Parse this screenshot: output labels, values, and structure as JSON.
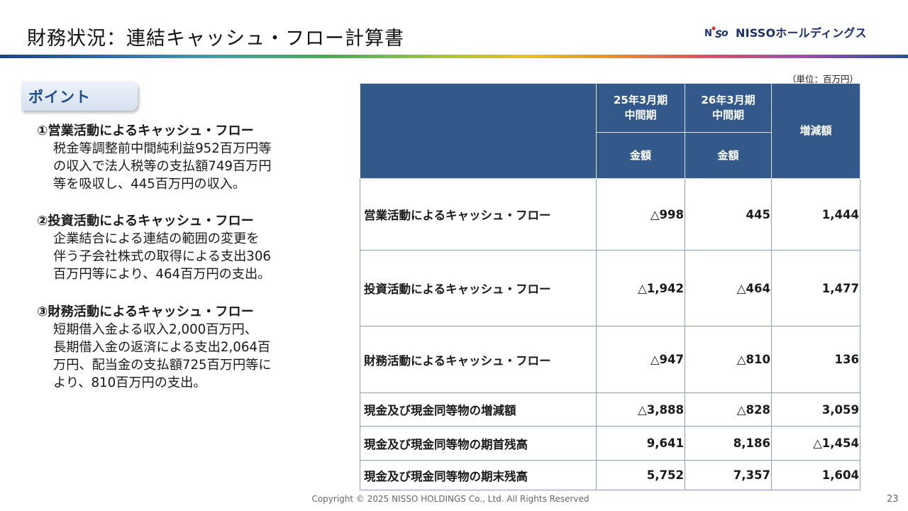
{
  "header": {
    "title": "財務状況：連結キャッシュ・フロー計算書",
    "logo_text": "NISSOホールディングス"
  },
  "points": {
    "badge": "ポイント",
    "items": [
      {
        "heading": "①営業活動によるキャッシュ・フロー",
        "lines": [
          "税金等調整前中間純利益952百万円等",
          "の収入で法人税等の支払額749百万円",
          "等を吸収し、445百万円の収入。"
        ]
      },
      {
        "heading": "②投資活動によるキャッシュ・フロー",
        "lines": [
          "企業結合による連結の範囲の変更を",
          "伴う子会社株式の取得による支出306",
          "百万円等により、464百万円の支出。"
        ]
      },
      {
        "heading": "③財務活動によるキャッシュ・フロー",
        "lines": [
          "短期借入金よる収入2,000百万円、",
          "長期借入金の返済による支出2,064百",
          "万円、配当金の支払額725百万円等に",
          "より、810百万円の支出。"
        ]
      }
    ]
  },
  "table": {
    "unit": "（単位：百万円）",
    "col1": "25年3月期\n中間期",
    "col2": "26年3月期\n中間期",
    "col3": "増減額",
    "amount": "金額",
    "rows": [
      {
        "label": "営業活動によるキャッシュ・フロー",
        "v1": "△998",
        "v2": "445",
        "diff": "1,444"
      },
      {
        "label": "投資活動によるキャッシュ・フロー",
        "v1": "△1,942",
        "v2": "△464",
        "diff": "1,477"
      },
      {
        "label": "財務活動によるキャッシュ・フロー",
        "v1": "△947",
        "v2": "△810",
        "diff": "136"
      },
      {
        "label": "現金及び現金同等物の増減額",
        "v1": "△3,888",
        "v2": "△828",
        "diff": "3,059"
      },
      {
        "label": "現金及び現金同等物の期首残高",
        "v1": "9,641",
        "v2": "8,186",
        "diff": "△1,454"
      },
      {
        "label": "現金及び現金同等物の期末残高",
        "v1": "5,752",
        "v2": "7,357",
        "diff": "1,604"
      }
    ]
  },
  "footer": {
    "copyright": "Copyright © 2025 NISSO HOLDINGS Co., Ltd. All Rights Reserved",
    "page_number": "23"
  },
  "colors": {
    "table_header": "#33598a",
    "badge_text": "#1f4e8f",
    "logo": "#1b2f6b"
  }
}
